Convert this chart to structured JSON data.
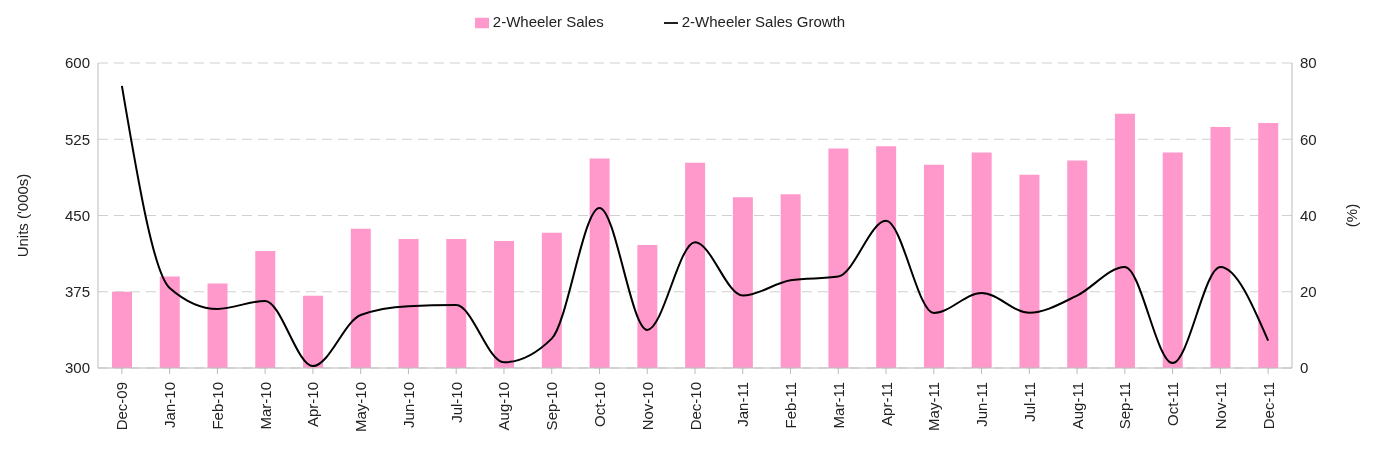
{
  "chart_data": {
    "type": "bar",
    "categories": [
      "Dec-09",
      "Jan-10",
      "Feb-10",
      "Mar-10",
      "Apr-10",
      "May-10",
      "Jun-10",
      "Jul-10",
      "Aug-10",
      "Sep-10",
      "Oct-10",
      "Nov-10",
      "Dec-10",
      "Jan-11",
      "Feb-11",
      "Mar-11",
      "Apr-11",
      "May-11",
      "Jun-11",
      "Jul-11",
      "Aug-11",
      "Sep-11",
      "Oct-11",
      "Nov-11",
      "Dec-11"
    ],
    "series": [
      {
        "name": "2-Wheeler Sales",
        "color": "#ff99cc",
        "values": [
          375,
          390,
          383,
          415,
          371,
          437,
          427,
          427,
          425,
          433,
          506,
          421,
          502,
          468,
          471,
          516,
          518,
          500,
          512,
          490,
          504,
          550,
          512,
          537,
          541
        ]
      },
      {
        "name": "2-Wheeler Sales Growth",
        "type": "line",
        "axis": "y2",
        "color": "#000000",
        "values": [
          74,
          21,
          15.5,
          17.6,
          0.5,
          13.9,
          16.2,
          16.5,
          1.5,
          7.7,
          42,
          10,
          33,
          19,
          23,
          24,
          38.6,
          14.4,
          19.7,
          14.5,
          19,
          26.5,
          1.3,
          26.5,
          7.2
        ]
      }
    ],
    "ylabel": "Units ('000s)",
    "y2label": "(%)",
    "ylim": [
      300,
      600
    ],
    "yticks": [
      300,
      375,
      450,
      525,
      600
    ],
    "y2lim": [
      0,
      80
    ],
    "y2ticks": [
      0,
      20,
      40,
      60,
      80
    ],
    "grid": "y",
    "legend": "top",
    "marker": "none"
  }
}
